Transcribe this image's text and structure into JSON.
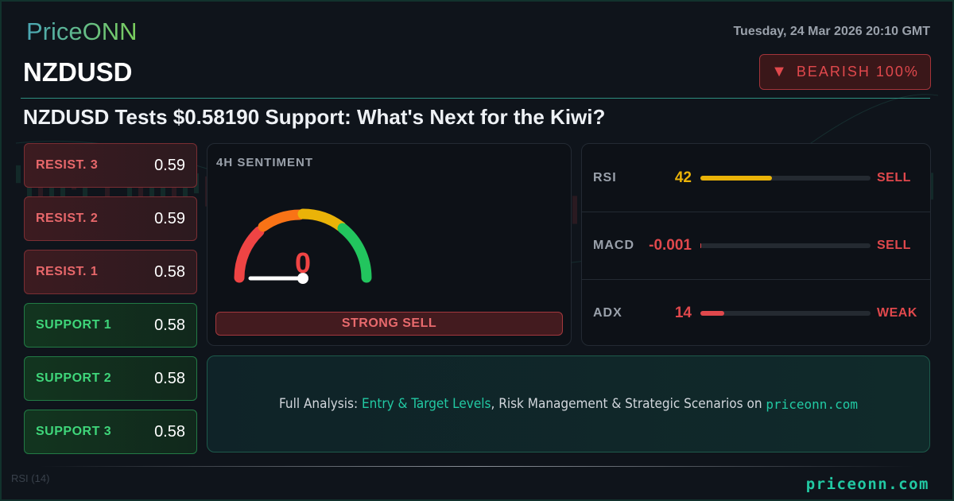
{
  "brand": {
    "logo": "PriceONN",
    "footer": "priceonn.com"
  },
  "header": {
    "date": "Tuesday, 24 Mar 2026 20:10 GMT",
    "symbol": "NZDUSD",
    "badge": {
      "icon": "triangle-down-icon",
      "label": "BEARISH 100%",
      "color": "#e0484c"
    }
  },
  "headline": "NZDUSD Tests $0.58190 Support: What's Next for the Kiwi?",
  "levels": [
    {
      "label": "RESIST. 3",
      "value": "0.59",
      "type": "resistance"
    },
    {
      "label": "RESIST. 2",
      "value": "0.59",
      "type": "resistance"
    },
    {
      "label": "RESIST. 1",
      "value": "0.58",
      "type": "resistance"
    },
    {
      "label": "SUPPORT 1",
      "value": "0.58",
      "type": "support"
    },
    {
      "label": "SUPPORT 2",
      "value": "0.58",
      "type": "support"
    },
    {
      "label": "SUPPORT 3",
      "value": "0.58",
      "type": "support"
    }
  ],
  "sentiment": {
    "title": "4H SENTIMENT",
    "value": "0",
    "gauge_percent": 0,
    "signal": "STRONG SELL"
  },
  "indicators": [
    {
      "name": "RSI",
      "value": "42",
      "fill_percent": 42,
      "signal": "SELL",
      "color": "#eab308"
    },
    {
      "name": "MACD",
      "value": "-0.001",
      "fill_percent": 0.5,
      "signal": "SELL",
      "color": "#e0484c"
    },
    {
      "name": "ADX",
      "value": "14",
      "fill_percent": 14,
      "signal": "WEAK",
      "color": "#e0484c"
    }
  ],
  "cta": {
    "prefix": "Full Analysis: ",
    "highlight": "Entry & Target Levels",
    "middle": ", Risk Management & Strategic Scenarios on ",
    "site": "priceonn.com"
  },
  "background": {
    "indicator_label": "RSI (14)"
  }
}
